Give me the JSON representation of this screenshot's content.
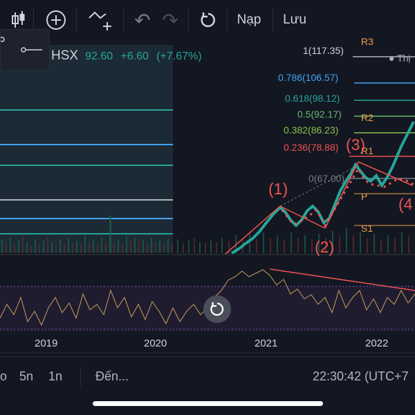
{
  "toolbar": {
    "undo_label": "↶",
    "redo_label": "↷",
    "load_label": "Nạp",
    "save_label": "Lưu"
  },
  "symbol": {
    "ticker": "HSX",
    "last": "92.60",
    "change": "+6.60",
    "change_pct": "(+7.67%)"
  },
  "fib_levels": [
    {
      "label": "1(117.35)",
      "color": "#b2b5be"
    },
    {
      "label": "0.786(106.57)",
      "color": "#42a5f5"
    },
    {
      "label": "0.618(98.12)",
      "color": "#26a69a"
    },
    {
      "label": "0.5(92.17)",
      "color": "#66bb6a"
    },
    {
      "label": "0.382(86.23)",
      "color": "#8bc34a"
    },
    {
      "label": "0.236(78.88)",
      "color": "#ef5350"
    },
    {
      "label": "0(67.00)",
      "color": "#787b86"
    }
  ],
  "pivots": {
    "r3": "R3",
    "r2": "R2",
    "r1": "R1",
    "p": "P",
    "s1": "S1"
  },
  "waves": {
    "w1": "(1)",
    "w2": "(2)",
    "w3": "(3)",
    "w4": "(4"
  },
  "price_label": "Thị",
  "x_axis": [
    "2019",
    "2020",
    "2021",
    "2022"
  ],
  "bottom": {
    "tf_partial": "o",
    "tf_5y": "5n",
    "tf_1y": "1n",
    "goto": "Đến...",
    "clock": "22:30:42 (UTC+7"
  }
}
